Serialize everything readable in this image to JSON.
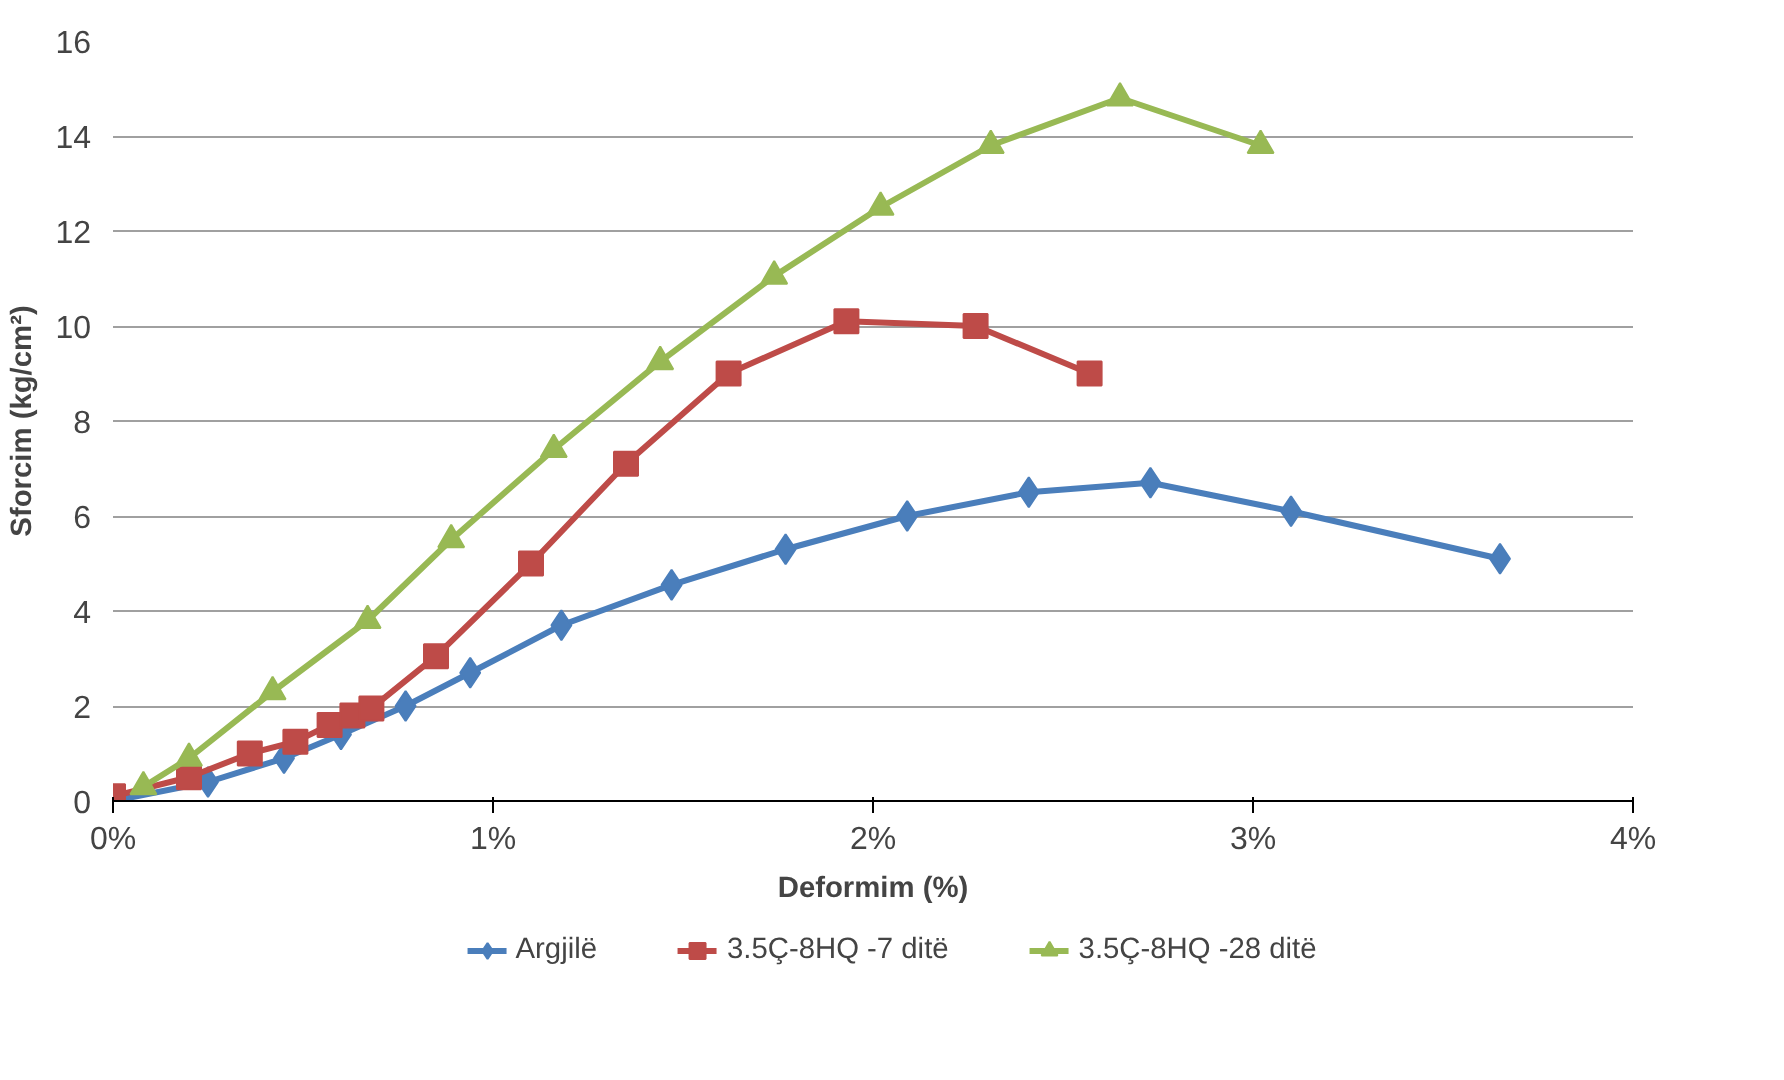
{
  "chart_data": {
    "type": "line",
    "xlabel": "Deformim (%)",
    "ylabel": "Sforcim (kg/cm²)",
    "xlim": [
      0,
      4
    ],
    "xticks": [
      {
        "value": 0,
        "label": "0%"
      },
      {
        "value": 1,
        "label": "1%"
      },
      {
        "value": 2,
        "label": "2%"
      },
      {
        "value": 3,
        "label": "3%"
      },
      {
        "value": 4,
        "label": "4%"
      }
    ],
    "ylim": [
      0,
      16
    ],
    "yticks": [
      0,
      2,
      4,
      6,
      8,
      10,
      12,
      14,
      16
    ],
    "grid": "y",
    "legend": "bottom",
    "series": [
      {
        "name": "Argjilë",
        "color": "#4a7ebb",
        "marker": "diamond",
        "x": [
          0,
          0.25,
          0.45,
          0.6,
          0.77,
          0.94,
          1.18,
          1.47,
          1.77,
          2.09,
          2.41,
          2.73,
          3.1,
          3.65
        ],
        "values": [
          0,
          0.4,
          0.9,
          1.4,
          2.0,
          2.7,
          3.7,
          4.55,
          5.3,
          6.0,
          6.5,
          6.7,
          6.1,
          5.1
        ]
      },
      {
        "name": "3.5Ç-8HQ -7 ditë",
        "color": "#be4b48",
        "marker": "square",
        "x": [
          0,
          0.2,
          0.36,
          0.48,
          0.57,
          0.63,
          0.68,
          0.85,
          1.1,
          1.35,
          1.62,
          1.93,
          2.27,
          2.57
        ],
        "values": [
          0.1,
          0.5,
          1.0,
          1.25,
          1.6,
          1.8,
          1.95,
          3.05,
          5.0,
          7.1,
          9.0,
          10.1,
          10.0,
          9.0
        ]
      },
      {
        "name": "3.5Ç-8HQ -28 ditë",
        "color": "#98b954",
        "marker": "triangle",
        "x": [
          0.08,
          0.2,
          0.42,
          0.67,
          0.89,
          1.16,
          1.44,
          1.74,
          2.02,
          2.31,
          2.65,
          3.02
        ],
        "values": [
          0.3,
          0.9,
          2.3,
          3.8,
          5.5,
          7.4,
          9.25,
          11.05,
          12.5,
          13.8,
          14.8,
          13.8
        ]
      }
    ]
  }
}
